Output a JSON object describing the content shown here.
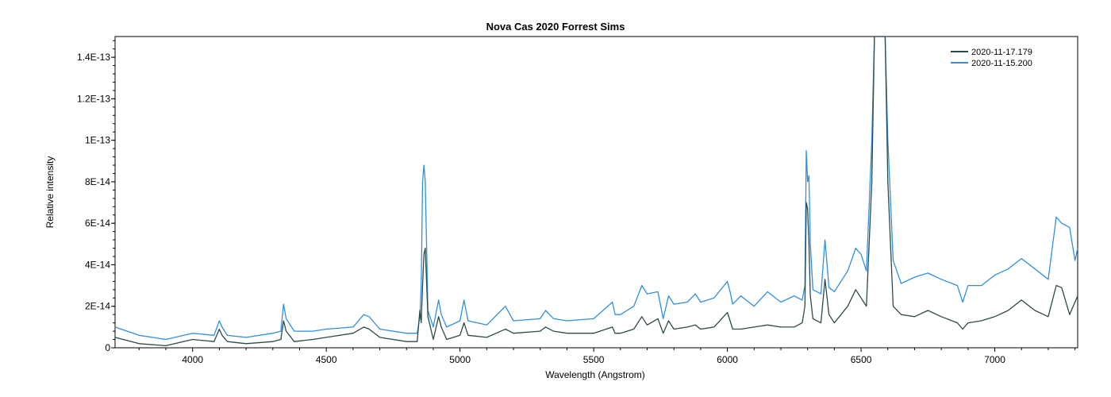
{
  "chart_data": {
    "type": "line",
    "title": "Nova Cas 2020   Forrest Sims",
    "xlabel": "Wavelength (Angstrom)",
    "ylabel": "Relative intensity",
    "xlim": [
      3710,
      7310
    ],
    "ylim": [
      0,
      1.5e-13
    ],
    "x_ticks": [
      4000,
      4500,
      5000,
      5500,
      6000,
      6500,
      7000
    ],
    "x_tick_labels": [
      "4000",
      "4500",
      "5000",
      "5500",
      "6000",
      "6500",
      "7000"
    ],
    "y_ticks": [
      0,
      2e-14,
      4e-14,
      6e-14,
      8e-14,
      1e-13,
      1.2e-13,
      1.4e-13
    ],
    "y_tick_labels": [
      "0",
      "2E-14",
      "4E-14",
      "6E-14",
      "8E-14",
      "1E-13",
      "1.2E-13",
      "1.4E-13"
    ],
    "grid": false,
    "legend_position": "top-right",
    "series": [
      {
        "name": "2020-11-17.179",
        "color": "#2b4a4a",
        "x": [
          3710,
          3800,
          3900,
          4000,
          4080,
          4100,
          4110,
          4130,
          4200,
          4300,
          4330,
          4340,
          4350,
          4380,
          4450,
          4500,
          4600,
          4640,
          4660,
          4700,
          4800,
          4840,
          4850,
          4855,
          4860,
          4865,
          4870,
          4880,
          4900,
          4920,
          4930,
          4950,
          5000,
          5015,
          5030,
          5100,
          5170,
          5200,
          5300,
          5320,
          5350,
          5400,
          5500,
          5570,
          5580,
          5600,
          5650,
          5680,
          5700,
          5740,
          5760,
          5780,
          5800,
          5850,
          5880,
          5900,
          5950,
          6000,
          6010,
          6020,
          6050,
          6100,
          6150,
          6200,
          6250,
          6280,
          6290,
          6295,
          6300,
          6305,
          6310,
          6320,
          6350,
          6365,
          6380,
          6400,
          6450,
          6480,
          6500,
          6520,
          6540,
          6550,
          6560,
          6570,
          6580,
          6590,
          6600,
          6620,
          6650,
          6700,
          6750,
          6800,
          6860,
          6880,
          6900,
          6950,
          7000,
          7050,
          7100,
          7150,
          7200,
          7230,
          7250,
          7280,
          7300,
          7310
        ],
        "y": [
          5e-15,
          2e-15,
          1e-15,
          4e-15,
          3e-15,
          9e-15,
          6e-15,
          3e-15,
          2e-15,
          3e-15,
          4e-15,
          1.3e-14,
          8e-15,
          3e-15,
          4e-15,
          5e-15,
          7e-15,
          1e-14,
          9e-15,
          5e-15,
          3e-15,
          3e-15,
          1.8e-14,
          1.2e-14,
          3e-14,
          4.5e-14,
          4.8e-14,
          1.5e-14,
          4e-15,
          1.5e-14,
          1e-14,
          4e-15,
          6e-15,
          1.2e-14,
          6e-15,
          5e-15,
          9e-15,
          7e-15,
          8e-15,
          1e-14,
          8e-15,
          7e-15,
          7e-15,
          1e-14,
          7e-15,
          7e-15,
          9e-15,
          1.5e-14,
          1.1e-14,
          1.4e-14,
          7e-15,
          1.3e-14,
          9e-15,
          1e-14,
          1.1e-14,
          9e-15,
          1e-14,
          1.7e-14,
          1.3e-14,
          9e-15,
          9e-15,
          1e-14,
          1.1e-14,
          1e-14,
          1e-14,
          1.2e-14,
          2e-14,
          7e-14,
          6.7e-14,
          5e-14,
          2.5e-14,
          1.4e-14,
          1.2e-14,
          3.3e-14,
          1.6e-14,
          1.2e-14,
          2e-14,
          2.8e-14,
          2.4e-14,
          2e-14,
          8e-14,
          1.5e-13,
          1.5e-13,
          1.5e-13,
          1.5e-13,
          1.5e-13,
          8e-14,
          2e-14,
          1.6e-14,
          1.5e-14,
          1.8e-14,
          1.5e-14,
          1.2e-14,
          9e-15,
          1.2e-14,
          1.3e-14,
          1.5e-14,
          1.8e-14,
          2.3e-14,
          1.8e-14,
          1.5e-14,
          3e-14,
          2.9e-14,
          1.6e-14,
          2.2e-14,
          2.5e-14
        ]
      },
      {
        "name": "2020-11-15.200",
        "color": "#2f8fdf",
        "x": [
          3710,
          3800,
          3900,
          4000,
          4080,
          4100,
          4110,
          4130,
          4200,
          4300,
          4330,
          4340,
          4350,
          4380,
          4450,
          4500,
          4600,
          4640,
          4660,
          4700,
          4800,
          4840,
          4850,
          4855,
          4860,
          4865,
          4870,
          4880,
          4900,
          4920,
          4930,
          4950,
          5000,
          5015,
          5030,
          5100,
          5170,
          5200,
          5300,
          5320,
          5350,
          5400,
          5500,
          5570,
          5580,
          5600,
          5650,
          5680,
          5700,
          5740,
          5760,
          5780,
          5800,
          5850,
          5880,
          5900,
          5950,
          6000,
          6010,
          6020,
          6050,
          6100,
          6150,
          6200,
          6250,
          6280,
          6290,
          6295,
          6300,
          6305,
          6310,
          6320,
          6350,
          6365,
          6380,
          6400,
          6450,
          6480,
          6500,
          6520,
          6540,
          6550,
          6560,
          6570,
          6580,
          6590,
          6600,
          6620,
          6650,
          6700,
          6750,
          6800,
          6860,
          6880,
          6900,
          6950,
          7000,
          7050,
          7100,
          7150,
          7200,
          7230,
          7250,
          7280,
          7300,
          7310
        ],
        "y": [
          1e-14,
          6e-15,
          4e-15,
          7e-15,
          6e-15,
          1.3e-14,
          1e-14,
          6e-15,
          5e-15,
          7e-15,
          8e-15,
          2.1e-14,
          1.4e-14,
          8e-15,
          8e-15,
          9e-15,
          1e-14,
          1.6e-14,
          1.5e-14,
          9e-15,
          7e-15,
          7e-15,
          1.5e-14,
          3e-14,
          8e-14,
          8.8e-14,
          8e-14,
          1.8e-14,
          1e-14,
          2.3e-14,
          1.6e-14,
          1e-14,
          1.3e-14,
          2.3e-14,
          1.3e-14,
          1.1e-14,
          2e-14,
          1.3e-14,
          1.4e-14,
          1.8e-14,
          1.4e-14,
          1.3e-14,
          1.4e-14,
          2.2e-14,
          1.6e-14,
          1.6e-14,
          2e-14,
          3e-14,
          2.6e-14,
          2.7e-14,
          1.4e-14,
          2.5e-14,
          2.1e-14,
          2.2e-14,
          2.6e-14,
          2.2e-14,
          2.4e-14,
          3.2e-14,
          2.7e-14,
          2.1e-14,
          2.5e-14,
          2e-14,
          2.7e-14,
          2.2e-14,
          2.5e-14,
          2.3e-14,
          3e-14,
          9.5e-14,
          8e-14,
          8.3e-14,
          5e-14,
          2.8e-14,
          2.6e-14,
          5.2e-14,
          2.9e-14,
          2.7e-14,
          3.7e-14,
          4.8e-14,
          4.5e-14,
          3.7e-14,
          1e-13,
          1.5e-13,
          1.5e-13,
          1.5e-13,
          1.5e-13,
          1.5e-13,
          1e-13,
          4.2e-14,
          3.1e-14,
          3.4e-14,
          3.6e-14,
          3.3e-14,
          3e-14,
          2.2e-14,
          3e-14,
          3e-14,
          3.5e-14,
          3.8e-14,
          4.3e-14,
          3.8e-14,
          3.3e-14,
          6.3e-14,
          6e-14,
          5.8e-14,
          4.2e-14,
          4.8e-14
        ]
      }
    ]
  }
}
